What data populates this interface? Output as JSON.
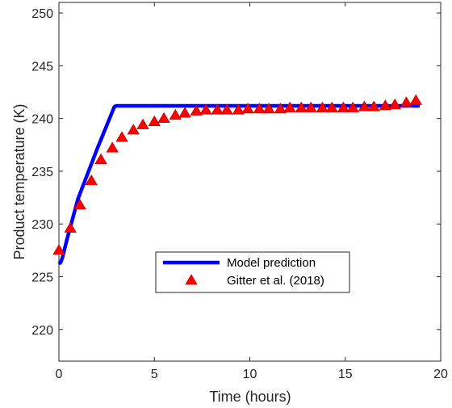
{
  "chart_data": {
    "type": "line",
    "title": "",
    "xlabel": "Time (hours)",
    "ylabel": "Product temperature (K)",
    "xlim": [
      0,
      20
    ],
    "ylim": [
      217,
      251
    ],
    "xticks": [
      0,
      5,
      10,
      15,
      20
    ],
    "yticks": [
      220,
      225,
      230,
      235,
      240,
      245,
      250
    ],
    "grid": false,
    "legend_position": "lower-center",
    "series": [
      {
        "name": "Model prediction",
        "kind": "line",
        "color": "#0000ff",
        "x": [
          0,
          0.1,
          0.2,
          0.4,
          1.0,
          2.0,
          2.9,
          3.0,
          18.9
        ],
        "y": [
          226.2,
          226.4,
          226.9,
          228.4,
          232.4,
          237.1,
          241.1,
          241.2,
          241.2
        ]
      },
      {
        "name": "Gitter et al. (2018)",
        "kind": "marker",
        "marker": "triangle",
        "color": "#ff0000",
        "x": [
          0.0,
          0.6,
          1.1,
          1.7,
          2.2,
          2.8,
          3.3,
          3.9,
          4.4,
          5.0,
          5.5,
          6.1,
          6.6,
          7.2,
          7.7,
          8.3,
          8.8,
          9.4,
          9.9,
          10.5,
          11.0,
          11.6,
          12.1,
          12.7,
          13.2,
          13.8,
          14.3,
          14.9,
          15.4,
          16.0,
          16.5,
          17.1,
          17.6,
          18.2,
          18.7
        ],
        "y": [
          227.5,
          229.6,
          231.8,
          234.1,
          236.1,
          237.2,
          238.2,
          238.9,
          239.4,
          239.7,
          240.0,
          240.3,
          240.5,
          240.7,
          240.8,
          240.8,
          240.8,
          240.8,
          240.9,
          240.9,
          240.9,
          240.9,
          241.0,
          241.0,
          241.0,
          241.0,
          241.0,
          241.0,
          241.0,
          241.1,
          241.1,
          241.2,
          241.3,
          241.5,
          241.7
        ]
      }
    ]
  }
}
